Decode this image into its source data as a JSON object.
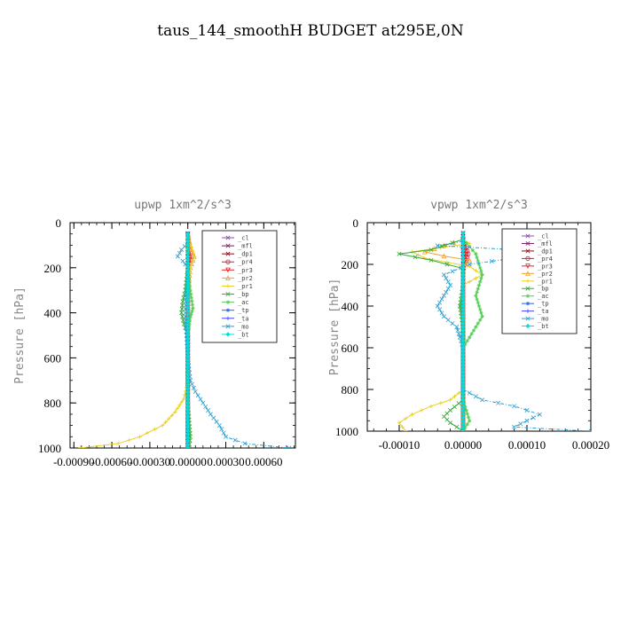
{
  "figure": {
    "title": "taus_144_smoothH  BUDGET at295E,0N"
  },
  "chart_data": [
    {
      "type": "line",
      "title": "upwp   1xm^2/s^3",
      "ylabel": "Pressure [hPa]",
      "xlim": [
        -0.00093,
        0.00085
      ],
      "ylim": [
        1000,
        0
      ],
      "yticks": [
        0,
        200,
        400,
        600,
        800,
        1000
      ],
      "ytick_labels": [
        "0",
        "200",
        "400",
        "600",
        "800",
        "1000"
      ],
      "xticks": [
        -0.0009,
        -0.0006,
        -0.0003,
        0.0,
        0.0003,
        0.0006
      ],
      "xtick_labels": [
        "-0.00090",
        "-0.00060",
        "-0.00030",
        "0.00000",
        "0.00030",
        "0.00060"
      ],
      "legend_position": "top-right",
      "series": [
        {
          "name": "_cl",
          "color": "#8a4fa8",
          "marker": "x",
          "y": [
            50,
            150,
            300,
            500,
            700,
            850,
            1000
          ],
          "values": [
            0,
            0,
            0,
            0,
            0,
            0,
            0
          ]
        },
        {
          "name": "_mfl",
          "color": "#7a1a6a",
          "marker": "x",
          "y": [
            50,
            150,
            300,
            500,
            700,
            850,
            1000
          ],
          "values": [
            0,
            0,
            0,
            0,
            0,
            0,
            0
          ]
        },
        {
          "name": "_dp1",
          "color": "#8b0a1a",
          "marker": "x",
          "y": [
            50,
            150,
            300,
            500,
            700,
            850,
            1000
          ],
          "values": [
            0,
            0,
            0,
            0,
            0,
            0,
            0
          ]
        },
        {
          "name": "_pr4",
          "color": "#cc2244",
          "marker": "o",
          "y": [
            50,
            120,
            150,
            180,
            250,
            500,
            800,
            1000
          ],
          "values": [
            0,
            1e-05,
            3e-05,
            1e-05,
            0,
            0,
            0,
            0
          ]
        },
        {
          "name": "_pr3",
          "color": "#ee2222",
          "marker": "v",
          "y": [
            50,
            150,
            300,
            500,
            800,
            1000
          ],
          "values": [
            0,
            1e-05,
            0,
            0,
            0,
            0
          ]
        },
        {
          "name": "_pr2",
          "color": "#f0a030",
          "marker": "^",
          "y": [
            50,
            120,
            150,
            200,
            300,
            600,
            900,
            1000
          ],
          "values": [
            0,
            3e-05,
            5e-05,
            2e-05,
            0,
            0,
            0,
            0
          ]
        },
        {
          "name": "_pr1",
          "color": "#e8d020",
          "marker": "+",
          "y": [
            80,
            110,
            150,
            200,
            280,
            500,
            700,
            780,
            840,
            900,
            950,
            980,
            1000
          ],
          "values": [
            0,
            3e-05,
            5e-05,
            2e-05,
            0,
            0,
            0,
            -3e-05,
            -0.0001,
            -0.0002,
            -0.00038,
            -0.00055,
            -0.00085
          ]
        },
        {
          "name": "_bp",
          "color": "#33aa33",
          "marker": "x",
          "y": [
            80,
            200,
            300,
            350,
            400,
            450,
            500,
            600,
            800,
            950,
            1000
          ],
          "values": [
            0,
            0,
            -2e-05,
            -4e-05,
            -5e-05,
            -3e-05,
            0,
            0,
            0,
            2e-05,
            1e-05
          ]
        },
        {
          "name": "_ac",
          "color": "#55cc55",
          "marker": "*",
          "y": [
            80,
            200,
            300,
            380,
            420,
            500,
            600,
            900,
            1000
          ],
          "values": [
            0,
            0,
            2e-05,
            4e-05,
            2e-05,
            0,
            0,
            0,
            0
          ]
        },
        {
          "name": "_tp",
          "color": "#2266dd",
          "marker": "*",
          "y": [
            50,
            150,
            300,
            500,
            800,
            1000
          ],
          "values": [
            0,
            0,
            0,
            0,
            0,
            0
          ]
        },
        {
          "name": "_ta",
          "color": "#4444ff",
          "marker": "+",
          "y": [
            50,
            150,
            300,
            500,
            800,
            1000
          ],
          "values": [
            0,
            0,
            0,
            0,
            0,
            0
          ]
        },
        {
          "name": "_mo",
          "color": "#2a9fd0",
          "marker": "x",
          "y": [
            90,
            120,
            150,
            170,
            200,
            250,
            300,
            400,
            500,
            600,
            700,
            750,
            800,
            850,
            900,
            950,
            980,
            1000
          ],
          "values": [
            0,
            -5e-05,
            -8e-05,
            -4e-05,
            0,
            0,
            -1e-05,
            -2e-05,
            -1e-05,
            0,
            2e-05,
            6e-05,
            0.00012,
            0.00018,
            0.00025,
            0.0003,
            0.00045,
            0.0008
          ]
        },
        {
          "name": "_bt",
          "color": "#00dddd",
          "marker": "diamond",
          "y": [
            50,
            150,
            300,
            500,
            800,
            1000
          ],
          "values": [
            0,
            0,
            0,
            0,
            0,
            0
          ]
        }
      ]
    },
    {
      "type": "line",
      "title": "vpwp   1xm^2/s^3",
      "ylabel": "Pressure [hPa]",
      "xlim": [
        -0.00015,
        0.0002
      ],
      "ylim": [
        1000,
        0
      ],
      "yticks": [
        0,
        200,
        400,
        600,
        800,
        1000
      ],
      "ytick_labels": [
        "0",
        "200",
        "400",
        "600",
        "800",
        "1000"
      ],
      "xticks": [
        -0.0001,
        0.0,
        0.0001,
        0.0002
      ],
      "xtick_labels": [
        "-0.00010",
        "0.00000",
        "0.00010",
        "0.00020"
      ],
      "legend_position": "top-right",
      "series": [
        {
          "name": "_cl",
          "color": "#8a4fa8",
          "marker": "x",
          "y": [
            50,
            200,
            400,
            600,
            800,
            1000
          ],
          "values": [
            0,
            0,
            0,
            0,
            0,
            0
          ]
        },
        {
          "name": "_mfl",
          "color": "#7a1a6a",
          "marker": "x",
          "y": [
            50,
            200,
            400,
            600,
            800,
            1000
          ],
          "values": [
            0,
            0,
            0,
            0,
            0,
            0
          ]
        },
        {
          "name": "_dp1",
          "color": "#8b0a1a",
          "marker": "x",
          "y": [
            50,
            200,
            400,
            600,
            800,
            1000
          ],
          "values": [
            0,
            0,
            0,
            0,
            0,
            0
          ]
        },
        {
          "name": "_pr4",
          "color": "#cc2244",
          "marker": "o",
          "y": [
            80,
            120,
            150,
            180,
            220,
            400,
            800,
            1000
          ],
          "values": [
            0,
            5e-06,
            8e-06,
            4e-06,
            0,
            0,
            0,
            0
          ]
        },
        {
          "name": "_pr3",
          "color": "#ee2222",
          "marker": "v",
          "y": [
            80,
            150,
            250,
            500,
            800,
            1000
          ],
          "values": [
            0,
            4e-06,
            0,
            0,
            0,
            0
          ]
        },
        {
          "name": "_pr2",
          "color": "#f0a030",
          "marker": "^",
          "y": [
            80,
            110,
            140,
            160,
            180,
            210,
            300,
            600,
            1000
          ],
          "values": [
            0,
            -3e-05,
            -6e-05,
            -3e-05,
            1e-05,
            0,
            0,
            0,
            0
          ]
        },
        {
          "name": "_pr1",
          "color": "#e8d020",
          "marker": "+",
          "y": [
            80,
            100,
            140,
            170,
            210,
            250,
            300,
            400,
            600,
            800,
            850,
            880,
            920,
            960,
            1000
          ],
          "values": [
            0,
            1e-05,
            -8e-05,
            -6e-05,
            1e-05,
            3e-05,
            0,
            0,
            0,
            0,
            -2e-05,
            -5e-05,
            -8e-05,
            -0.0001,
            -9e-05
          ]
        },
        {
          "name": "_bp",
          "color": "#33aa33",
          "marker": "x",
          "y": [
            80,
            130,
            150,
            180,
            220,
            300,
            400,
            500,
            700,
            850,
            900,
            930,
            960,
            1000
          ],
          "values": [
            0,
            -5e-05,
            -0.0001,
            -5e-05,
            0,
            0,
            -5e-06,
            0,
            0,
            0,
            -2e-05,
            -3e-05,
            -2e-05,
            0
          ]
        },
        {
          "name": "_ac",
          "color": "#55cc55",
          "marker": "*",
          "y": [
            80,
            150,
            250,
            350,
            450,
            600,
            850,
            950,
            1000
          ],
          "values": [
            0,
            2e-05,
            3e-05,
            2e-05,
            3e-05,
            0,
            0,
            1e-05,
            0
          ]
        },
        {
          "name": "_tp",
          "color": "#2266dd",
          "marker": "*",
          "y": [
            50,
            200,
            400,
            600,
            800,
            1000
          ],
          "values": [
            0,
            0,
            0,
            0,
            0,
            0
          ]
        },
        {
          "name": "_ta",
          "color": "#4444ff",
          "marker": "+",
          "y": [
            50,
            200,
            400,
            600,
            800,
            1000
          ],
          "values": [
            0,
            0,
            0,
            0,
            0,
            0
          ]
        },
        {
          "name": "_mo",
          "color": "#2a9fd0",
          "marker": "x",
          "y": [
            90,
            110,
            130,
            150,
            170,
            200,
            250,
            300,
            350,
            400,
            450,
            500,
            600,
            700,
            800,
            850,
            880,
            920,
            950,
            980,
            1000
          ],
          "values": [
            0,
            -4e-05,
            8e-05,
            0.00016,
            8e-05,
            1e-05,
            -3e-05,
            -2e-05,
            -3e-05,
            -4e-05,
            -3e-05,
            -1e-05,
            0,
            0,
            0,
            3e-05,
            8e-05,
            0.00012,
            0.0001,
            8e-05,
            0.0002
          ]
        },
        {
          "name": "_bt",
          "color": "#00dddd",
          "marker": "diamond",
          "y": [
            50,
            200,
            400,
            600,
            800,
            1000
          ],
          "values": [
            0,
            0,
            0,
            0,
            0,
            0
          ]
        }
      ]
    }
  ]
}
